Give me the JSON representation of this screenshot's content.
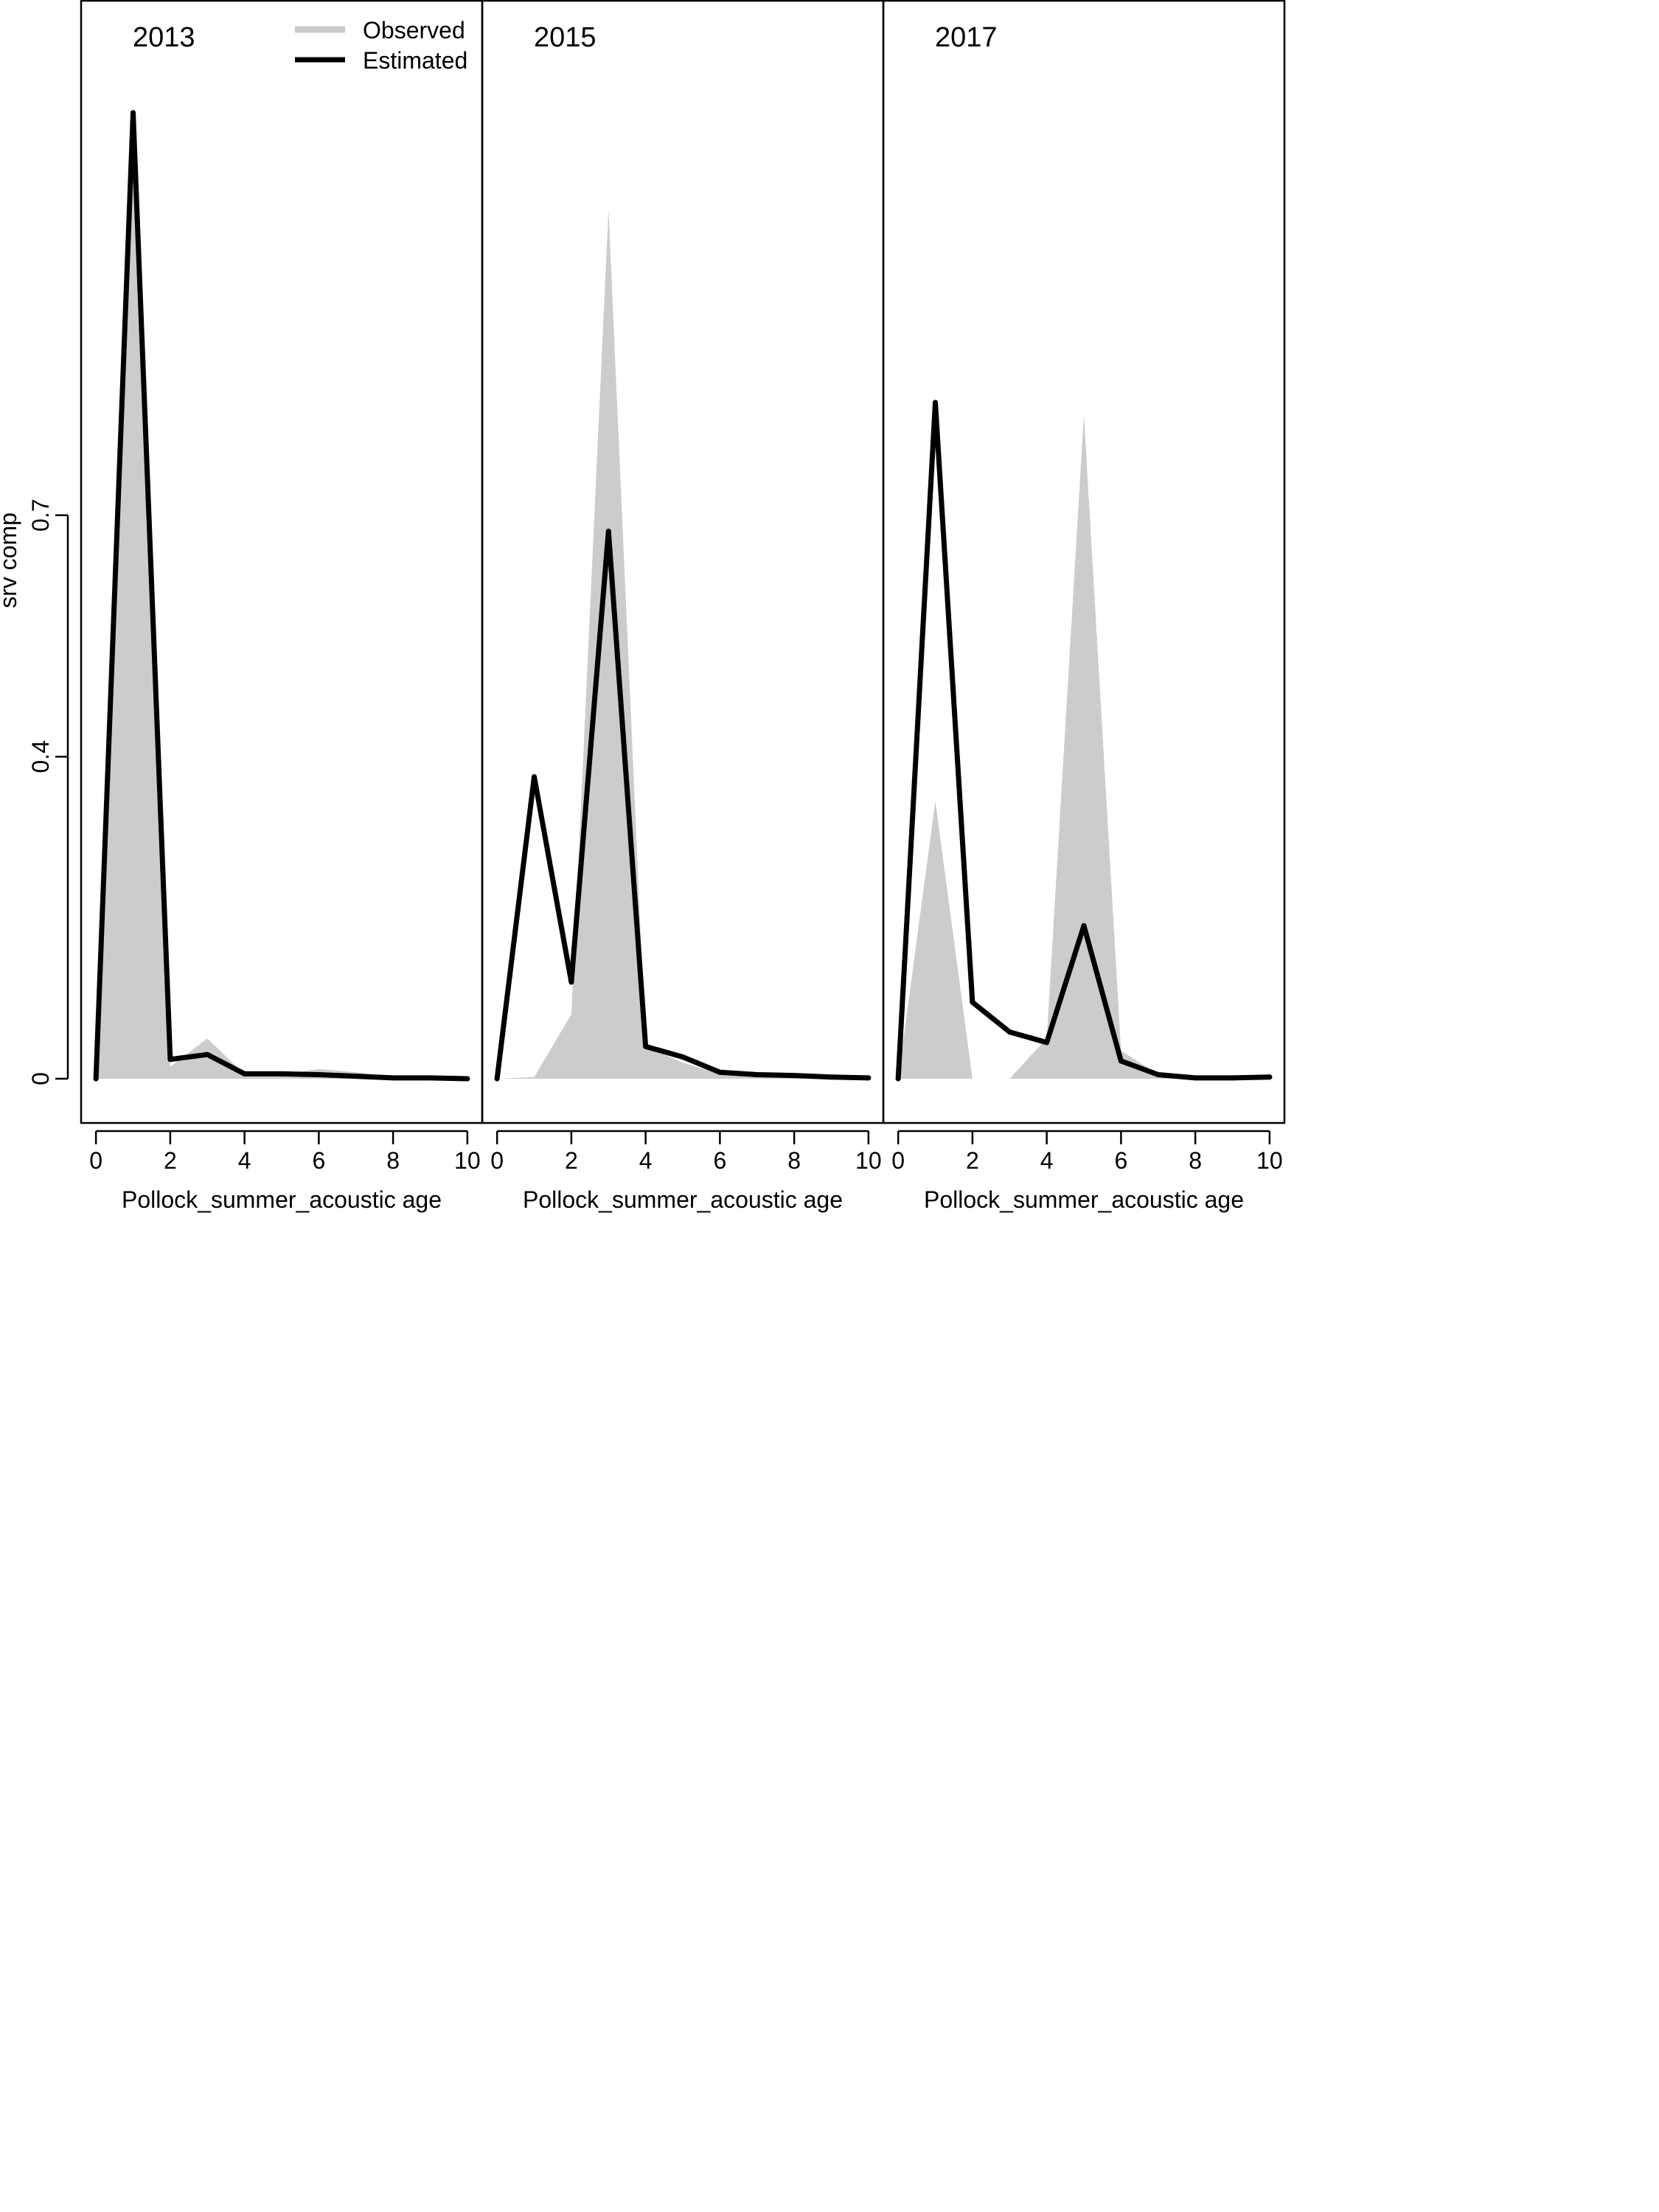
{
  "figure": {
    "ylabel": "srv comp",
    "legend": {
      "observed_label": "Observed",
      "estimated_label": "Estimated",
      "observed_color": "#cccccc",
      "estimated_color": "#000000",
      "placement": "top-right of first panel"
    }
  },
  "chart_data": [
    {
      "type": "area",
      "title": "2013",
      "xlabel": "Pollock_summer_acoustic age",
      "ylabel": "srv comp",
      "xlim": [
        -0.4,
        10.4
      ],
      "ylim": [
        -0.055,
        1.34
      ],
      "x_ticks": [
        0,
        2,
        4,
        6,
        8,
        10
      ],
      "y_ticks": [
        0,
        0.4,
        0.7
      ],
      "x": [
        0,
        1,
        2,
        3,
        4,
        5,
        6,
        7,
        8,
        9,
        10
      ],
      "series": [
        {
          "name": "Observed",
          "values": [
            0,
            1.2,
            0.015,
            0.05,
            0.005,
            0.005,
            0.012,
            0.008,
            0.003,
            0.001,
            0.001
          ]
        },
        {
          "name": "Estimated",
          "values": [
            0,
            1.2,
            0.024,
            0.03,
            0.006,
            0.006,
            0.005,
            0.003,
            0.001,
            0.001,
            0.0
          ]
        }
      ],
      "grid": false
    },
    {
      "type": "area",
      "title": "2015",
      "xlabel": "Pollock_summer_acoustic age",
      "ylabel": "",
      "xlim": [
        -0.4,
        10.4
      ],
      "ylim": [
        -0.055,
        1.34
      ],
      "x_ticks": [
        0,
        2,
        4,
        6,
        8,
        10
      ],
      "y_ticks": [
        0,
        0.4,
        0.7
      ],
      "x": [
        0,
        1,
        2,
        3,
        4,
        5,
        6,
        7,
        8,
        9,
        10
      ],
      "series": [
        {
          "name": "Observed",
          "values": [
            0,
            0.002,
            0.08,
            1.08,
            0.04,
            0.02,
            0.006,
            0.003,
            0.002,
            0.001,
            0.001
          ]
        },
        {
          "name": "Estimated",
          "values": [
            0,
            0.375,
            0.12,
            0.68,
            0.04,
            0.027,
            0.008,
            0.005,
            0.004,
            0.002,
            0.001
          ]
        }
      ],
      "grid": false
    },
    {
      "type": "area",
      "title": "2017",
      "xlabel": "Pollock_summer_acoustic age",
      "ylabel": "",
      "xlim": [
        -0.4,
        10.4
      ],
      "ylim": [
        -0.055,
        1.34
      ],
      "x_ticks": [
        0,
        2,
        4,
        6,
        8,
        10
      ],
      "y_ticks": [
        0,
        0.4,
        0.7
      ],
      "x": [
        0,
        1,
        2,
        3,
        4,
        5,
        6,
        7,
        8,
        9,
        10
      ],
      "series": [
        {
          "name": "Observed",
          "values": [
            0,
            0.345,
            0,
            0,
            0.05,
            0.825,
            0.035,
            0.005,
            0.002,
            0.001,
            0.001
          ]
        },
        {
          "name": "Estimated",
          "values": [
            0,
            0.84,
            0.095,
            0.058,
            0.045,
            0.19,
            0.022,
            0.005,
            0.001,
            0.001,
            0.002
          ]
        }
      ],
      "grid": false
    }
  ]
}
